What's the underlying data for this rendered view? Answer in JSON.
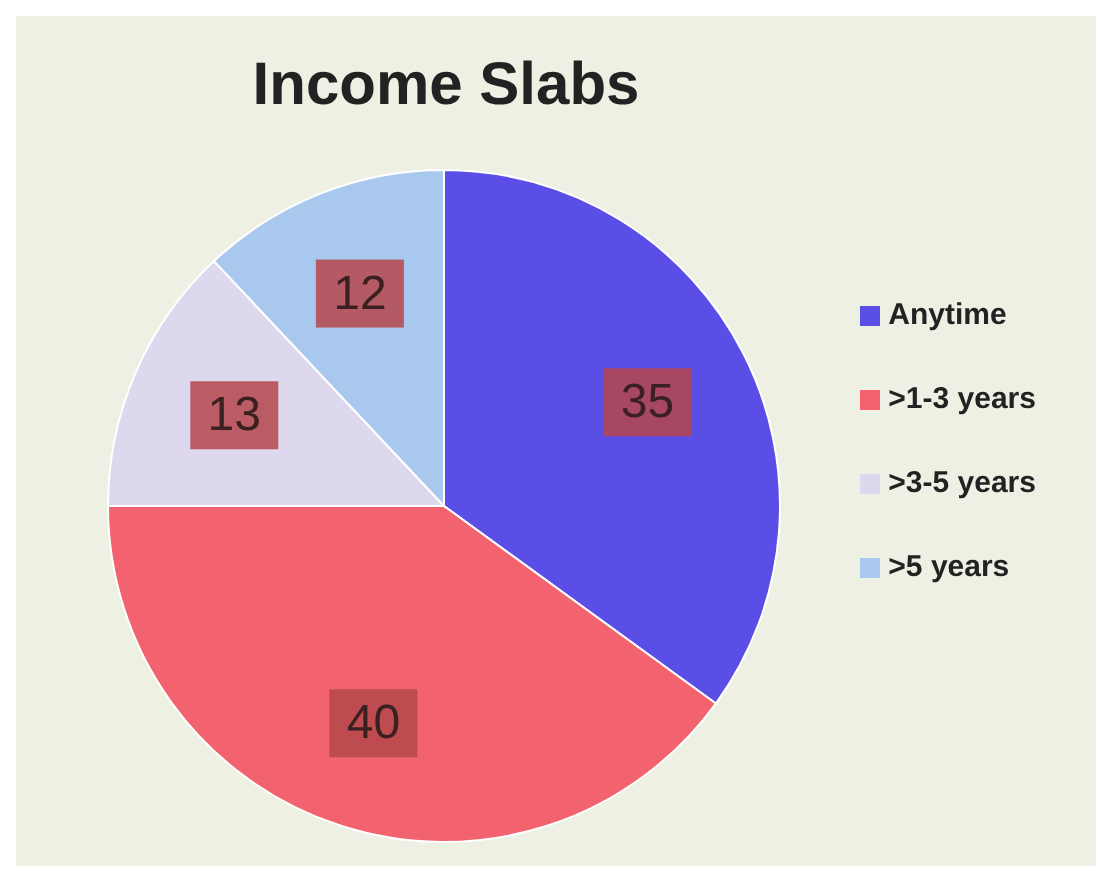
{
  "chart_data": {
    "type": "pie",
    "title": "Income Slabs",
    "categories": [
      "Anytime",
      ">1-3 years",
      ">3-5 years",
      ">5 years"
    ],
    "values": [
      35,
      40,
      13,
      12
    ],
    "colors": [
      "#5b4ee6",
      "#f2636f",
      "#ded8ee",
      "#a8c8ee"
    ],
    "data_labels": true,
    "legend": "right"
  }
}
